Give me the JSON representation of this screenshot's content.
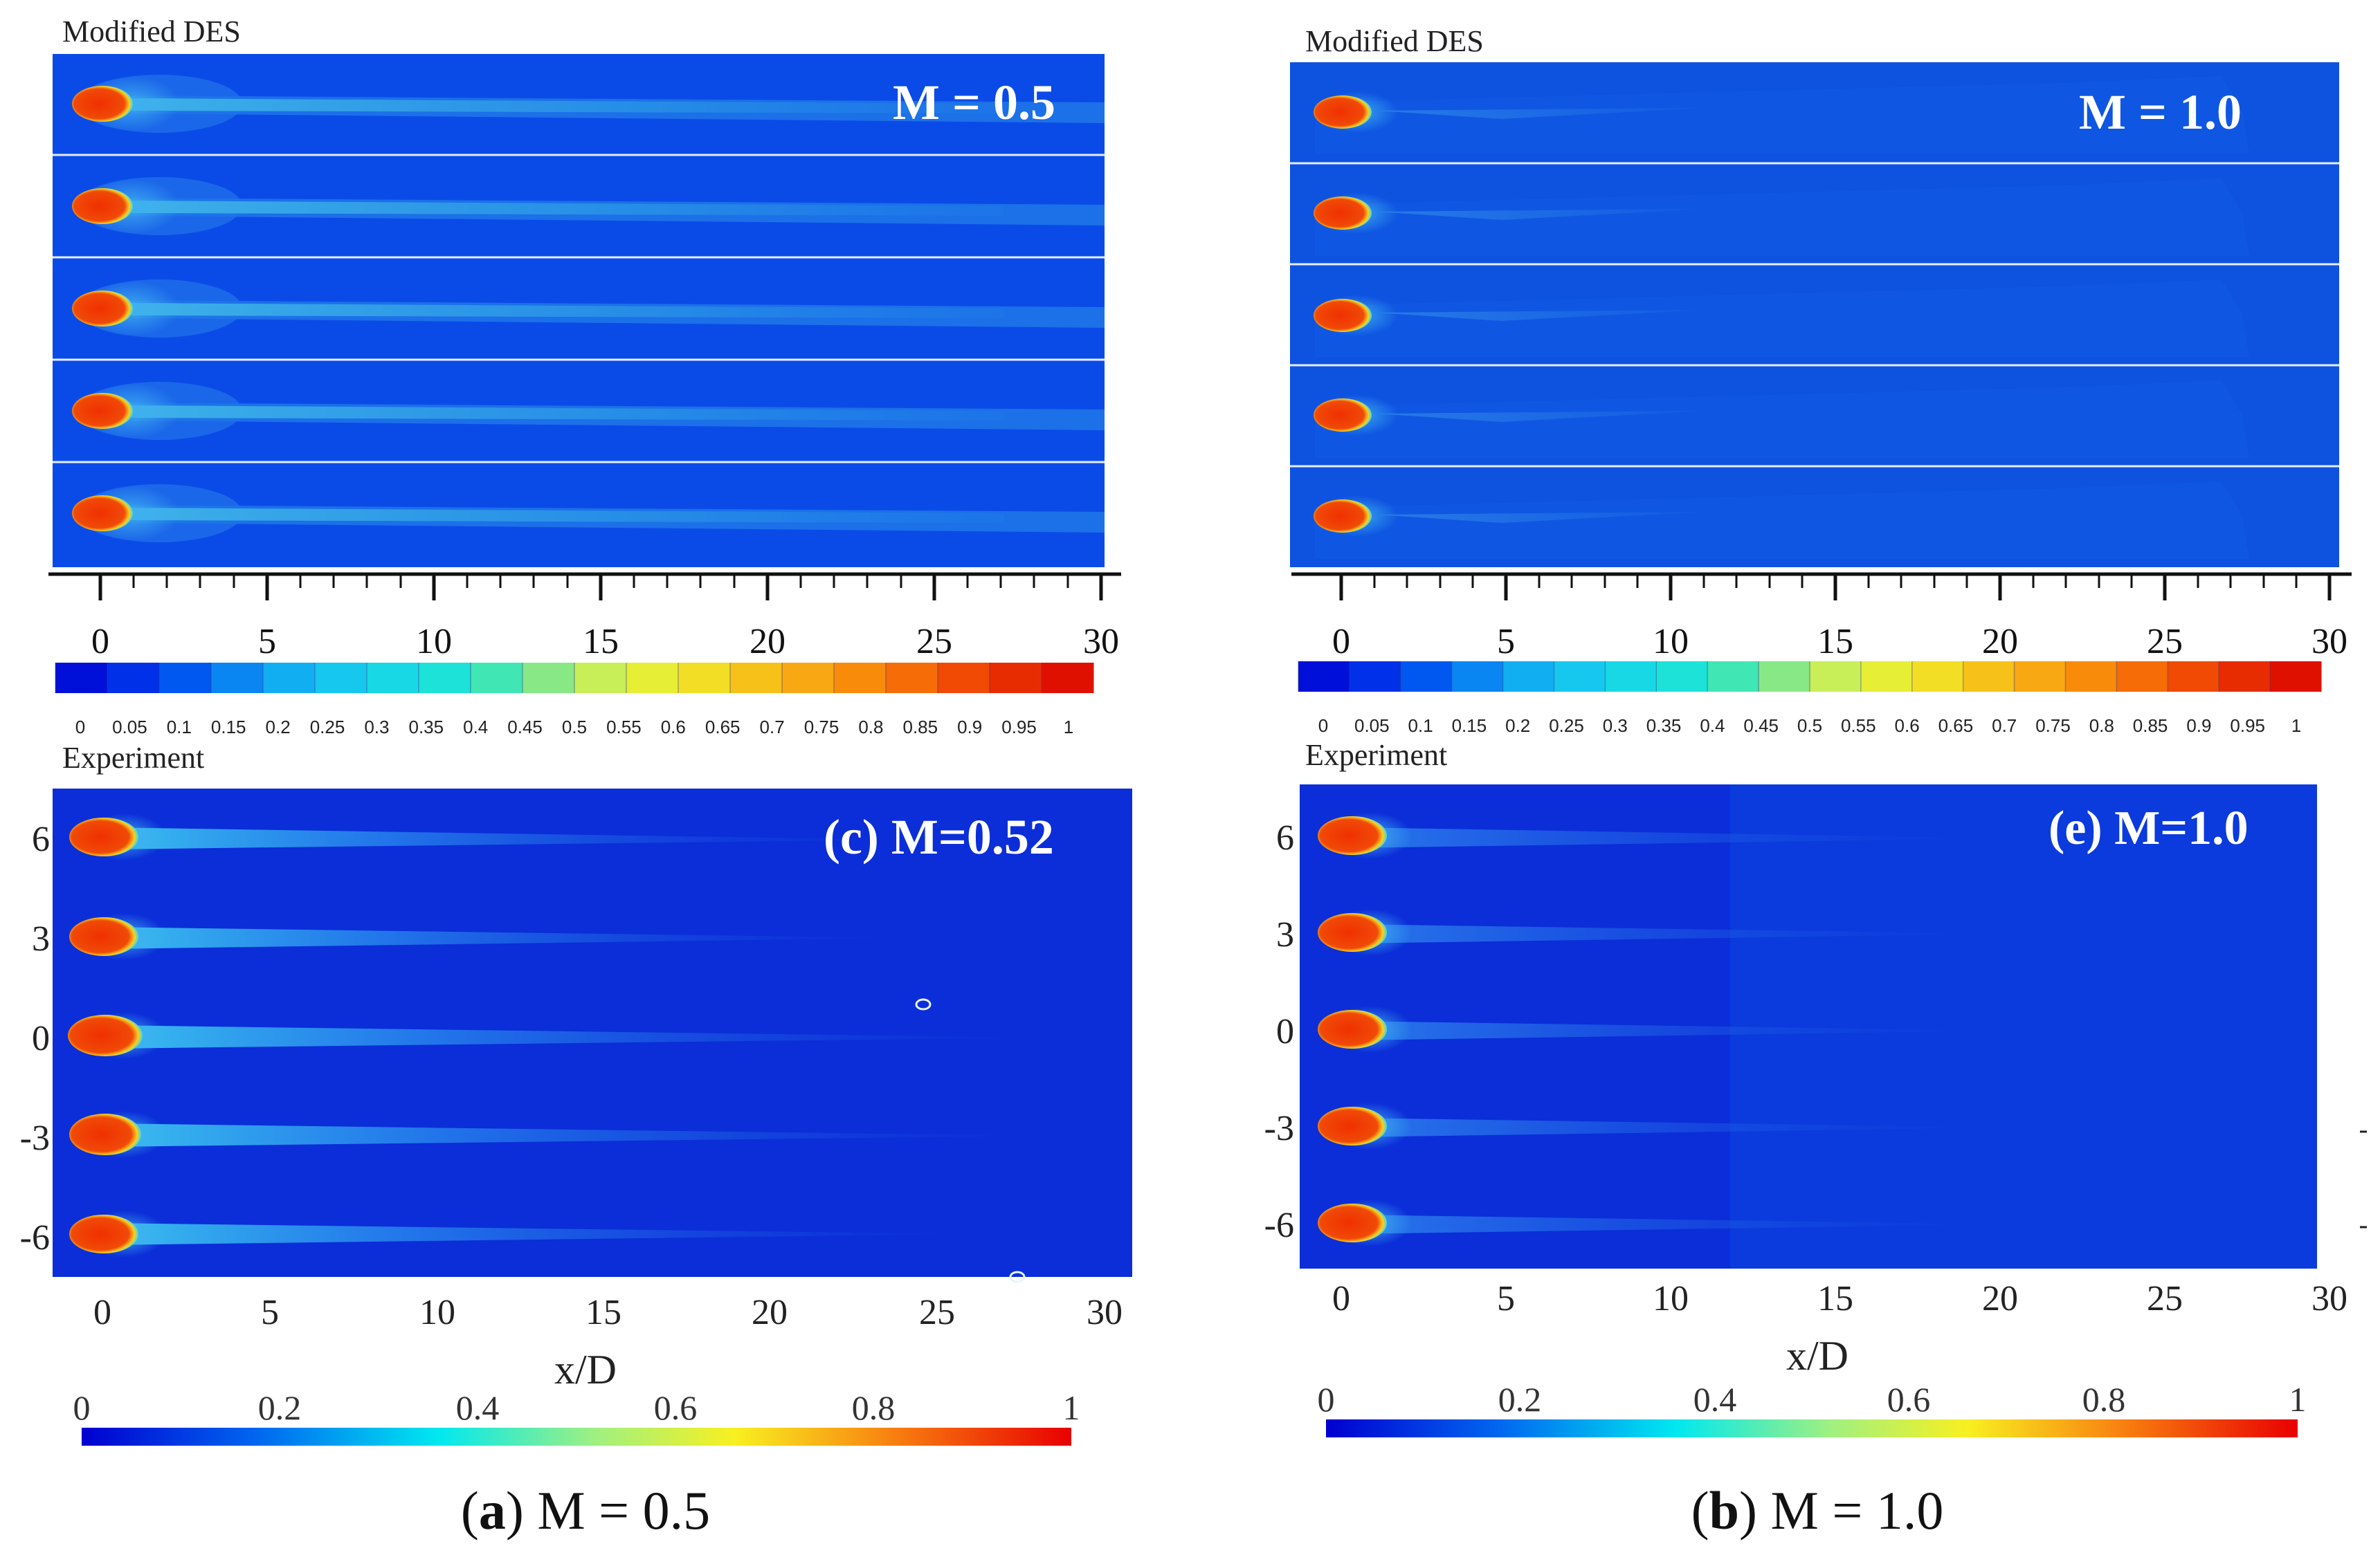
{
  "figure": {
    "caption_a": {
      "letter": "a",
      "text": "M = 0.5"
    },
    "caption_b": {
      "letter": "b",
      "text": "M = 1.0"
    }
  },
  "panels": {
    "a_top": {
      "source": "Modified DES",
      "label": "M = 0.5",
      "rows": 5,
      "blowing_ratio": 0.5
    },
    "b_top": {
      "source": "Modified DES",
      "label": "M = 1.0",
      "rows": 5,
      "blowing_ratio": 1.0
    },
    "a_bottom": {
      "source": "Experiment",
      "label": "(c) M=0.52",
      "blowing_ratio": 0.52
    },
    "b_bottom": {
      "source": "Experiment",
      "label": "(e) M=1.0",
      "blowing_ratio": 1.0
    }
  },
  "x_axis": {
    "label": "x/D",
    "ticks": [
      "0",
      "5",
      "10",
      "15",
      "20",
      "25",
      "30"
    ],
    "range": [
      0,
      30
    ]
  },
  "y_axis": {
    "ticks": [
      "6",
      "3",
      "0",
      "-3",
      "-6"
    ]
  },
  "des_colorbar": {
    "levels": [
      "0",
      "0.05",
      "0.1",
      "0.15",
      "0.2",
      "0.25",
      "0.3",
      "0.35",
      "0.4",
      "0.45",
      "0.5",
      "0.55",
      "0.6",
      "0.65",
      "0.7",
      "0.75",
      "0.8",
      "0.85",
      "0.9",
      "0.95",
      "1"
    ],
    "colors": [
      "#0010d8",
      "#0030e8",
      "#0058f0",
      "#0a86f2",
      "#12aef2",
      "#16c8ee",
      "#18d8e6",
      "#1ce2d8",
      "#40e6b4",
      "#88e886",
      "#c8ee58",
      "#e6ee36",
      "#f2de24",
      "#f6c21a",
      "#f8a812",
      "#f88c0a",
      "#f66c06",
      "#f04a04",
      "#e82c02",
      "#e01000"
    ]
  },
  "exp_colorbar": {
    "labels": [
      "0",
      "0.2",
      "0.4",
      "0.6",
      "0.8",
      "1"
    ]
  },
  "colors": {
    "field_a": "#0a4be8",
    "field_b": "#0e52e0",
    "field_exp": "#0b2ed8",
    "hole": "#f03a0a",
    "label_text": "#ffffff"
  }
}
